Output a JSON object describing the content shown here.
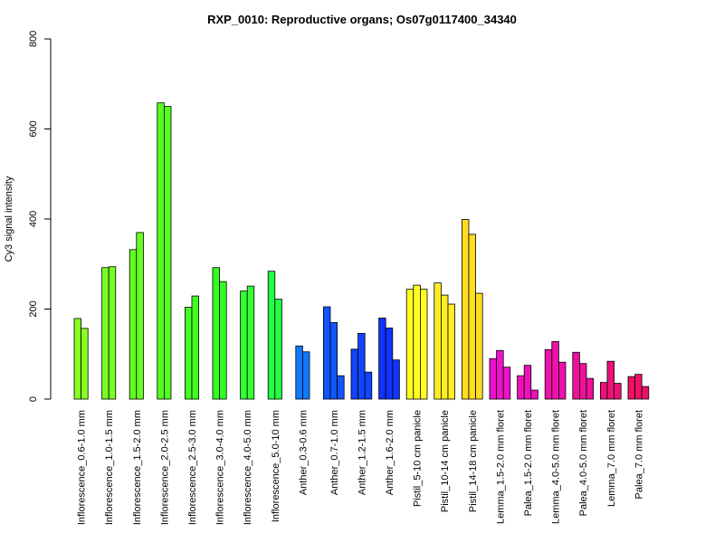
{
  "chart_data": {
    "type": "bar",
    "title": "RXP_0010: Reproductive organs; Os07g0117400_34340",
    "xlabel": "",
    "ylabel": "Cy3 signal intensity",
    "ylim": [
      0,
      800
    ],
    "yticks": [
      "0",
      "200",
      "400",
      "600",
      "800"
    ],
    "grid": false,
    "legend": "none",
    "groups": [
      {
        "label": "Inflorescence_0.6-1.0 mm",
        "color": "#88ff22",
        "values": [
          179,
          157
        ]
      },
      {
        "label": "Inflorescence_1.0-1.5 mm",
        "color": "#77ff22",
        "values": [
          292,
          294
        ]
      },
      {
        "label": "Inflorescence_1.5-2.0 mm",
        "color": "#66ff22",
        "values": [
          332,
          370
        ]
      },
      {
        "label": "Inflorescence_2.0-2.5 mm",
        "color": "#55ff22",
        "values": [
          658,
          650
        ]
      },
      {
        "label": "Inflorescence_2.5-3.0 mm",
        "color": "#44ff22",
        "values": [
          204,
          229
        ]
      },
      {
        "label": "Inflorescence_3.0-4.0 mm",
        "color": "#33ff22",
        "values": [
          292,
          261
        ]
      },
      {
        "label": "Inflorescence_4.0-5.0 mm",
        "color": "#33ff33",
        "values": [
          240,
          251
        ]
      },
      {
        "label": "Inflorescence_5.0-10 mm",
        "color": "#22ff44",
        "values": [
          284,
          222
        ]
      },
      {
        "label": "Anther_0.3-0.6 mm",
        "color": "#1177ff",
        "values": [
          118,
          105
        ]
      },
      {
        "label": "Anther_0.7-1.0 mm",
        "color": "#1155ff",
        "values": [
          205,
          170,
          52
        ]
      },
      {
        "label": "Anther_1.2-1.5 mm",
        "color": "#1144ff",
        "values": [
          111,
          146,
          60
        ]
      },
      {
        "label": "Anther_1.6-2.0 mm",
        "color": "#1133ff",
        "values": [
          180,
          158,
          87
        ]
      },
      {
        "label": "Pistil_5-10 cm panicle",
        "color": "#ffff22",
        "values": [
          244,
          253,
          244
        ]
      },
      {
        "label": "Pistil_10-14 cm panicle",
        "color": "#ffee22",
        "values": [
          258,
          231,
          211
        ]
      },
      {
        "label": "Pistil_14-18 cm panicle",
        "color": "#ffdd22",
        "values": [
          399,
          366,
          235
        ]
      },
      {
        "label": "Lemma_1.5-2.0 mm floret",
        "color": "#ee11cc",
        "values": [
          90,
          108,
          71
        ]
      },
      {
        "label": "Palea_1.5-2.0 mm floret",
        "color": "#ee11bb",
        "values": [
          52,
          75,
          20
        ]
      },
      {
        "label": "Lemma_4.0-5.0 mm floret",
        "color": "#ee11aa",
        "values": [
          110,
          128,
          82
        ]
      },
      {
        "label": "Palea_4.0-5.0 mm floret",
        "color": "#ee1199",
        "values": [
          104,
          79,
          46
        ]
      },
      {
        "label": "Lemma_7.0 mm floret",
        "color": "#ee1177",
        "values": [
          37,
          84,
          35
        ]
      },
      {
        "label": "Palea_7.0 mm floret",
        "color": "#ee1166",
        "values": [
          50,
          55,
          28
        ]
      }
    ]
  }
}
